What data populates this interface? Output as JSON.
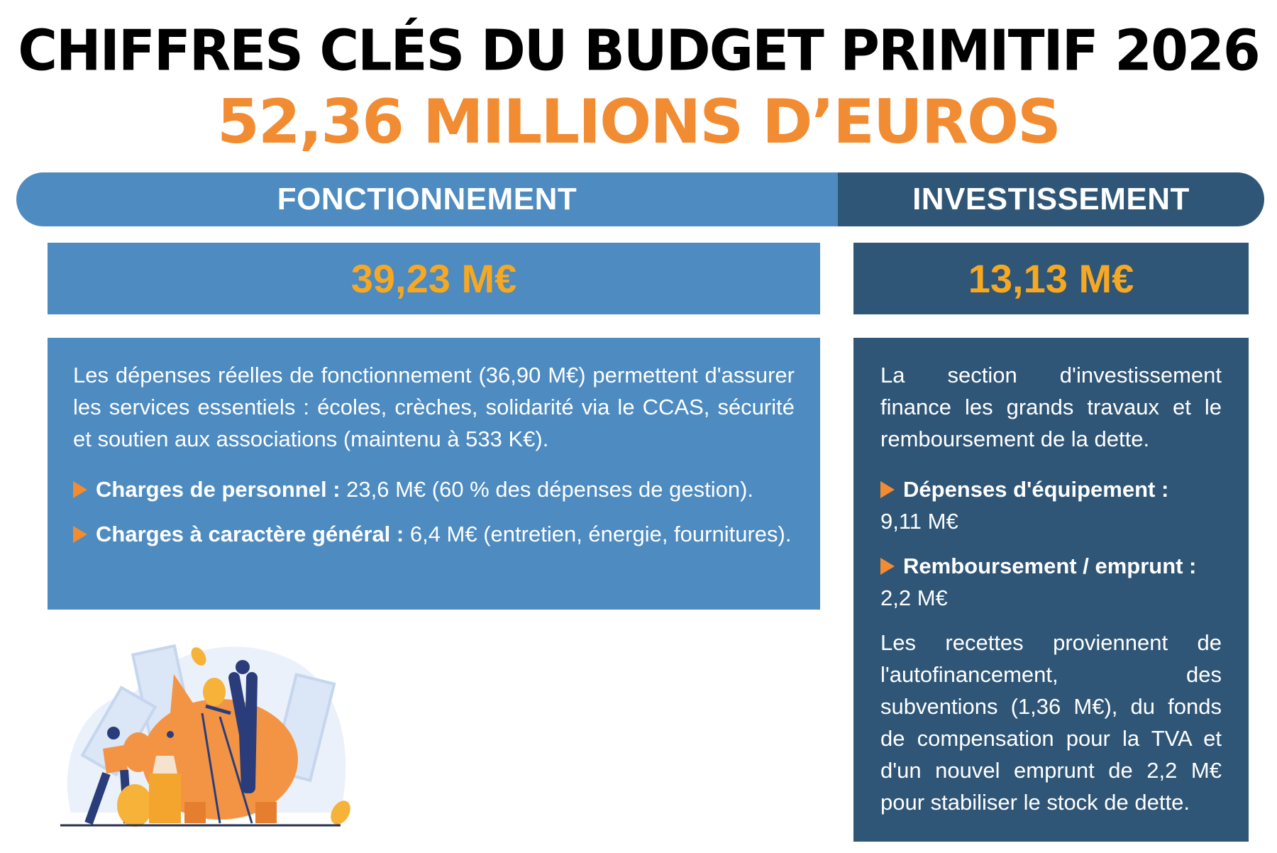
{
  "header": {
    "title": "CHIFFRES CLÉS DU BUDGET PRIMITIF 2026",
    "total": "52,36 MILLIONS D’EUROS"
  },
  "colors": {
    "fonctionnement": "#4d8bc0",
    "investissement": "#2f5677",
    "accent": "#f28c33",
    "value": "#f7a823"
  },
  "fonctionnement": {
    "label": "FONCTIONNEMENT",
    "amount": "39,23 M€",
    "intro": "Les dépenses réelles de fonctionnement (36,90 M€) permettent d'assurer les services essentiels : écoles, crèches, solidarité via le CCAS, sécurité et soutien aux associations (maintenu à 533 K€).",
    "items": [
      {
        "label": "Charges de personnel :",
        "text": " 23,6 M€ (60 % des dépenses de gestion)."
      },
      {
        "label": "Charges à caractère général :",
        "text": " 6,4 M€ (entretien, énergie, fournitures)."
      }
    ]
  },
  "investissement": {
    "label": "INVESTISSEMENT",
    "amount": "13,13 M€",
    "intro": "La section d'investissement finance les grands travaux et le remboursement de la dette.",
    "items": [
      {
        "label": "Dépenses d'équipement :",
        "text": " 9,11 M€"
      },
      {
        "label": "Remboursement / emprunt :",
        "text": " 2,2 M€"
      }
    ],
    "outro": "Les recettes proviennent de l'autofinancement, des subventions (1,36 M€), du fonds de compensation pour la TVA et d'un nouvel emprunt de 2,2 M€ pour stabiliser le stock de dette."
  }
}
